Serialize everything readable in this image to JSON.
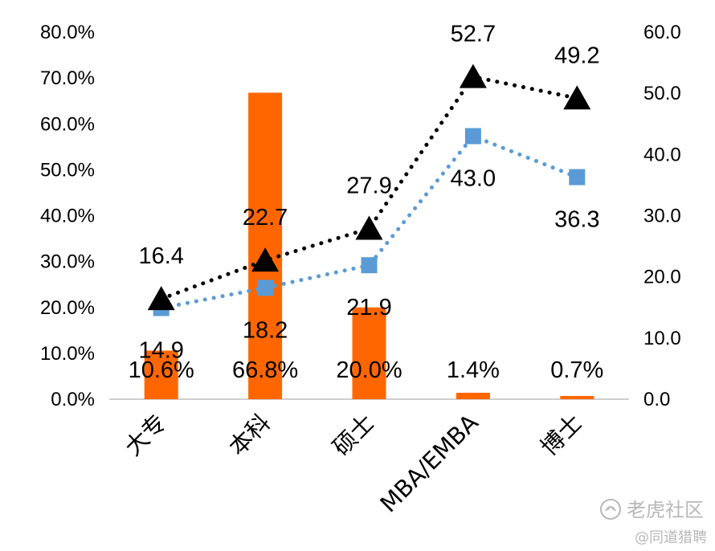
{
  "chart_data": {
    "type": "bar",
    "categories": [
      "大专",
      "本科",
      "硕士",
      "MBA/EMBA",
      "博士"
    ],
    "series": [
      {
        "type": "bar",
        "axis": "left",
        "color": "#ff6600",
        "values": [
          10.6,
          66.8,
          20.0,
          1.4,
          0.7
        ],
        "labels": [
          "10.6%",
          "66.8%",
          "20.0%",
          "1.4%",
          "0.7%"
        ]
      },
      {
        "type": "line",
        "axis": "right",
        "color": "#000000",
        "marker": "triangle",
        "line_style": "dotted",
        "values": [
          16.4,
          22.7,
          27.9,
          52.7,
          49.2
        ],
        "labels": [
          "16.4",
          "22.7",
          "27.9",
          "52.7",
          "49.2"
        ]
      },
      {
        "type": "line",
        "axis": "right",
        "color": "#5b9bd5",
        "marker": "square",
        "line_style": "dotted",
        "values": [
          14.9,
          18.2,
          21.9,
          43.0,
          36.3
        ],
        "labels": [
          "14.9",
          "18.2",
          "21.9",
          "43.0",
          "36.3"
        ]
      }
    ],
    "y_left": {
      "range": [
        0,
        80
      ],
      "ticks": [
        "0.0%",
        "10.0%",
        "20.0%",
        "30.0%",
        "40.0%",
        "50.0%",
        "60.0%",
        "70.0%",
        "80.0%"
      ]
    },
    "y_right": {
      "range": [
        0,
        60
      ],
      "ticks": [
        "0.0",
        "10.0",
        "20.0",
        "30.0",
        "40.0",
        "50.0",
        "60.0"
      ]
    },
    "grid": false,
    "legend": "none"
  },
  "watermark": {
    "brand": "老虎社区",
    "handle": "@同道猎聘",
    "color": "#b8b8b8"
  }
}
